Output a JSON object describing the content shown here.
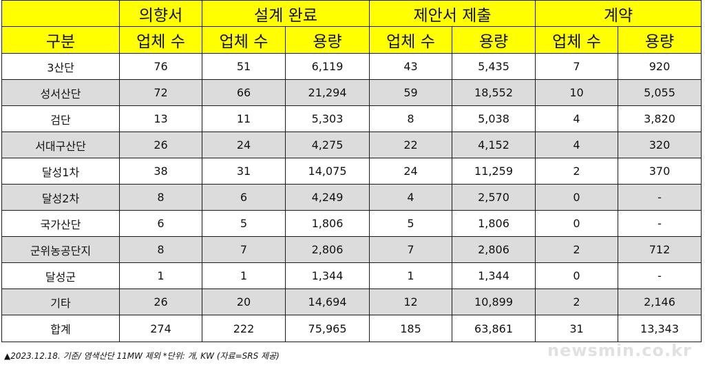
{
  "table": {
    "groups": [
      "의향서",
      "설계 완료",
      "제안서 제출",
      "계약"
    ],
    "subheaders": [
      "구분",
      "업체 수",
      "업체 수",
      "용량",
      "업체 수",
      "용량",
      "업체 수",
      "용량"
    ],
    "rows": [
      [
        "3산단",
        "76",
        "51",
        "6,119",
        "43",
        "5,435",
        "7",
        "920"
      ],
      [
        "성서산단",
        "72",
        "66",
        "21,294",
        "59",
        "18,552",
        "10",
        "5,055"
      ],
      [
        "검단",
        "13",
        "11",
        "5,303",
        "8",
        "5,038",
        "4",
        "3,820"
      ],
      [
        "서대구산단",
        "26",
        "24",
        "4,275",
        "22",
        "4,152",
        "4",
        "320"
      ],
      [
        "달성1차",
        "38",
        "31",
        "14,075",
        "24",
        "11,259",
        "2",
        "370"
      ],
      [
        "달성2차",
        "8",
        "6",
        "4,249",
        "4",
        "2,570",
        "0",
        "-"
      ],
      [
        "국가산단",
        "6",
        "5",
        "1,806",
        "5",
        "1,806",
        "0",
        "-"
      ],
      [
        "군위농공단지",
        "8",
        "7",
        "2,806",
        "7",
        "2,806",
        "2",
        "712"
      ],
      [
        "달성군",
        "1",
        "1",
        "1,344",
        "1",
        "1,344",
        "0",
        "-"
      ],
      [
        "기타",
        "26",
        "20",
        "14,694",
        "12",
        "10,899",
        "2",
        "2,146"
      ],
      [
        "합계",
        "274",
        "222",
        "75,965",
        "185",
        "63,861",
        "31",
        "13,343"
      ]
    ]
  },
  "footnote": "▲2023.12.18. 기준/ 염색산단 11MW 제외 *단위: 개, KW  (자료=SRS 제공)",
  "watermark": "newsmin.co.kr",
  "colors": {
    "header_bg": "#ffff00",
    "alt_row_bg": "#dcdcdc",
    "border": "#1a1a1a"
  }
}
